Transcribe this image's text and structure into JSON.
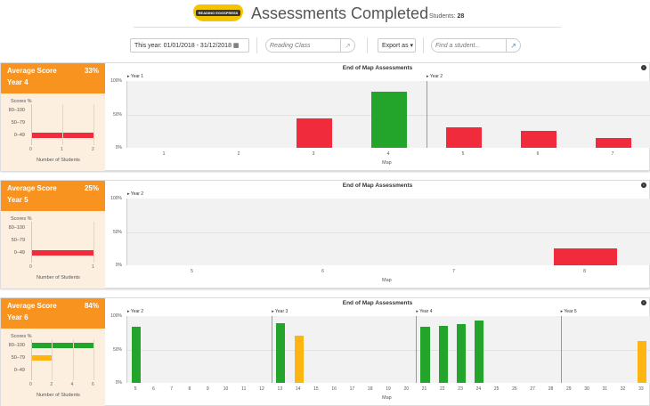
{
  "header": {
    "logo_text": "READING EGGSPRESS",
    "title": "Assessments Completed",
    "students_label": "Students:",
    "students_count": "28"
  },
  "toolbar": {
    "date_range": "This year: 01/01/2018 - 31/12/2018",
    "class_placeholder": "Reading Class",
    "export_label": "Export as",
    "student_placeholder": "Find a student..."
  },
  "colors": {
    "red": "#ef2b3c",
    "green": "#22a52a",
    "amber": "#ffb511",
    "orange": "#f7931e"
  },
  "cards": [
    {
      "avg_label": "Average Score",
      "avg": "33%",
      "year": "Year 4",
      "scores_label": "Scores %",
      "ranges": [
        "80–100",
        "50–79",
        "0–49"
      ],
      "counts": [
        0,
        0,
        2
      ],
      "xticks": [
        "0",
        "1",
        "2"
      ],
      "xmax": 2,
      "xlabel": "Number of Students",
      "chart_data": {
        "type": "bar",
        "title": "End of Map Assessments",
        "xlabel": "Map",
        "yticks": [
          "100%",
          "50%",
          "0%"
        ],
        "ylim": [
          0,
          100
        ],
        "categories": [
          "1",
          "2",
          "3",
          "4",
          "5",
          "6",
          "7"
        ],
        "values": [
          null,
          null,
          44,
          84,
          31,
          25,
          15
        ],
        "bands": [
          "red",
          "red",
          "red",
          "green",
          "red",
          "red",
          "red"
        ],
        "year_markers": [
          {
            "label": "Year 1",
            "at": "1"
          },
          {
            "label": "Year 2",
            "at": "5"
          }
        ]
      }
    },
    {
      "avg_label": "Average Score",
      "avg": "25%",
      "year": "Year 5",
      "scores_label": "Scores %",
      "ranges": [
        "80–100",
        "50–79",
        "0–49"
      ],
      "counts": [
        0,
        0,
        1
      ],
      "xticks": [
        "0",
        "1"
      ],
      "xmax": 1,
      "xlabel": "Number of Students",
      "chart_data": {
        "type": "bar",
        "title": "End of Map Assessments",
        "xlabel": "Map",
        "yticks": [
          "100%",
          "50%",
          "0%"
        ],
        "ylim": [
          0,
          100
        ],
        "categories": [
          "5",
          "6",
          "7",
          "8"
        ],
        "values": [
          null,
          null,
          null,
          25
        ],
        "bands": [
          "red",
          "red",
          "red",
          "red"
        ],
        "year_markers": [
          {
            "label": "Year 2",
            "at": "5"
          }
        ]
      }
    },
    {
      "avg_label": "Average Score",
      "avg": "84%",
      "year": "Year 6",
      "scores_label": "Scores %",
      "ranges": [
        "80–100",
        "50–79",
        "0–49"
      ],
      "counts": [
        6,
        2,
        0
      ],
      "xticks": [
        "0",
        "2",
        "4",
        "6"
      ],
      "xmax": 6,
      "xlabel": "Number of Students",
      "chart_data": {
        "type": "bar",
        "title": "End of Map Assessments",
        "xlabel": "Map",
        "yticks": [
          "100%",
          "50%",
          "0%"
        ],
        "ylim": [
          0,
          100
        ],
        "categories": [
          "5",
          "6",
          "7",
          "8",
          "9",
          "10",
          "11",
          "12",
          "13",
          "14",
          "15",
          "16",
          "17",
          "18",
          "19",
          "20",
          "21",
          "22",
          "23",
          "24",
          "25",
          "26",
          "27",
          "28",
          "29",
          "30",
          "31",
          "32",
          "33"
        ],
        "values": [
          84,
          null,
          null,
          null,
          null,
          null,
          null,
          null,
          89,
          71,
          null,
          null,
          null,
          null,
          null,
          null,
          84,
          86,
          88,
          93,
          null,
          null,
          null,
          null,
          null,
          null,
          null,
          null,
          63
        ],
        "bands": [
          "green",
          "",
          "",
          "",
          "",
          "",
          "",
          "",
          "green",
          "amber",
          "",
          "",
          "",
          "",
          "",
          "",
          "green",
          "green",
          "green",
          "green",
          "",
          "",
          "",
          "",
          "",
          "",
          "",
          "",
          "amber"
        ],
        "year_markers": [
          {
            "label": "Year 2",
            "at": "5"
          },
          {
            "label": "Year 3",
            "at": "13"
          },
          {
            "label": "Year 4",
            "at": "21"
          },
          {
            "label": "Year 5",
            "at": "29"
          }
        ]
      }
    }
  ]
}
